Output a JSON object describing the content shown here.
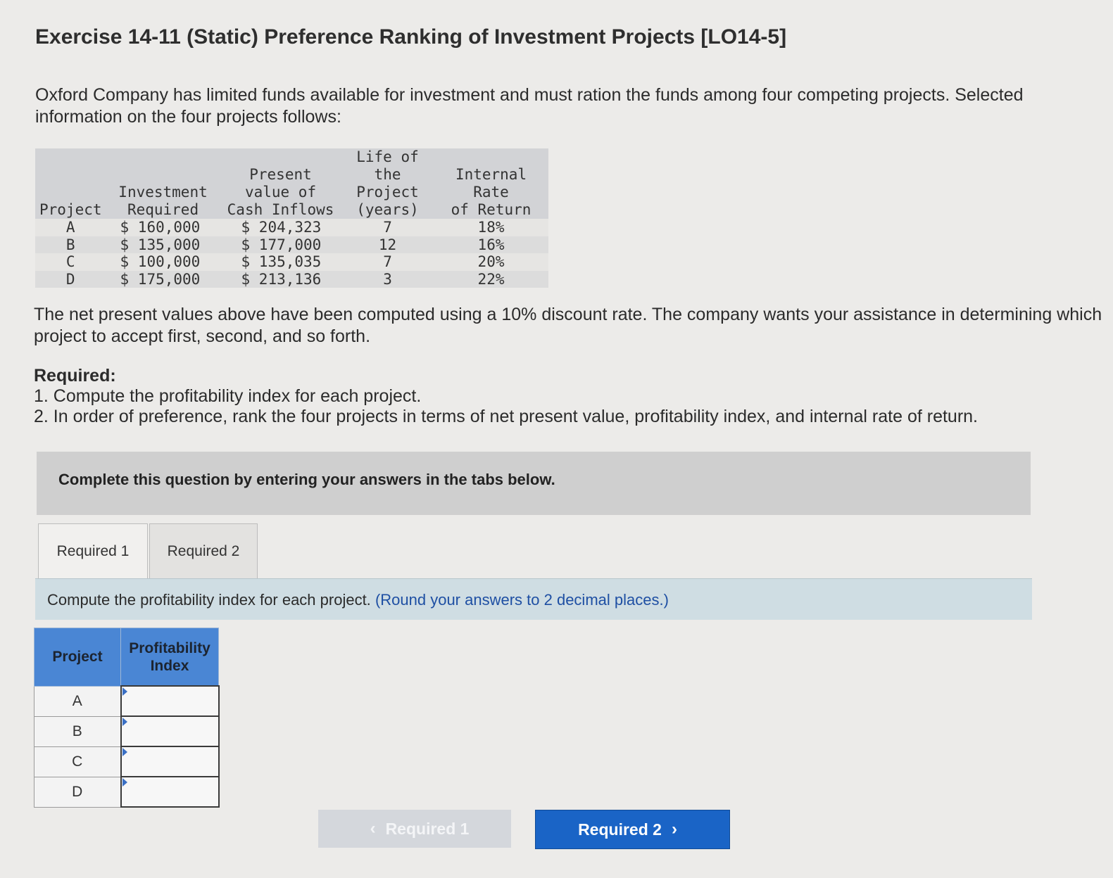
{
  "title": "Exercise 14-11 (Static) Preference Ranking of Investment Projects [LO14-5]",
  "intro": "Oxford Company has limited funds available for investment and must ration the funds among four competing projects. Selected information on the four projects follows:",
  "table": {
    "headers": {
      "project": "Project",
      "investment_l1": "Investment",
      "investment_l2": "Required",
      "pv_l1": "Present",
      "pv_l2": "value of",
      "pv_l3": "Cash Inflows",
      "life_l1": "Life of",
      "life_l2": "the",
      "life_l3": "Project",
      "life_l4": "(years)",
      "irr_l1": "Internal",
      "irr_l2": "Rate",
      "irr_l3": "of Return"
    },
    "rows": [
      {
        "project": "A",
        "investment": "$ 160,000",
        "pv": "$ 204,323",
        "life": "7",
        "irr": "18%"
      },
      {
        "project": "B",
        "investment": "$ 135,000",
        "pv": "$ 177,000",
        "life": "12",
        "irr": "16%"
      },
      {
        "project": "C",
        "investment": "$ 100,000",
        "pv": "$ 135,035",
        "life": "7",
        "irr": "20%"
      },
      {
        "project": "D",
        "investment": "$ 175,000",
        "pv": "$ 213,136",
        "life": "3",
        "irr": "22%"
      }
    ]
  },
  "note": "The net present values above have been computed using a 10% discount rate. The company wants your assistance in determining which project to accept first, second, and so forth.",
  "required": {
    "heading": "Required:",
    "items": [
      "1. Compute the profitability index for each project.",
      "2. In order of preference, rank the four projects in terms of net present value, profitability index, and internal rate of return."
    ]
  },
  "banner": "Complete this question by entering your answers in the tabs below.",
  "tabs": [
    "Required 1",
    "Required 2"
  ],
  "instruction": {
    "text": "Compute the profitability index for each project.",
    "round_note": "(Round your answers to 2 decimal places.)"
  },
  "pi_table": {
    "col_project": "Project",
    "col_pi_l1": "Profitability",
    "col_pi_l2": "Index",
    "rows": [
      {
        "project": "A",
        "value": ""
      },
      {
        "project": "B",
        "value": ""
      },
      {
        "project": "C",
        "value": ""
      },
      {
        "project": "D",
        "value": ""
      }
    ]
  },
  "nav": {
    "prev_label": "Required 1",
    "next_label": "Required 2",
    "prev_icon": "chevron-left-icon",
    "next_icon": "chevron-right-icon"
  },
  "colors": {
    "header_blue": "#4a86d4",
    "next_button": "#1a64c6",
    "round_note": "#1e4fa3"
  }
}
